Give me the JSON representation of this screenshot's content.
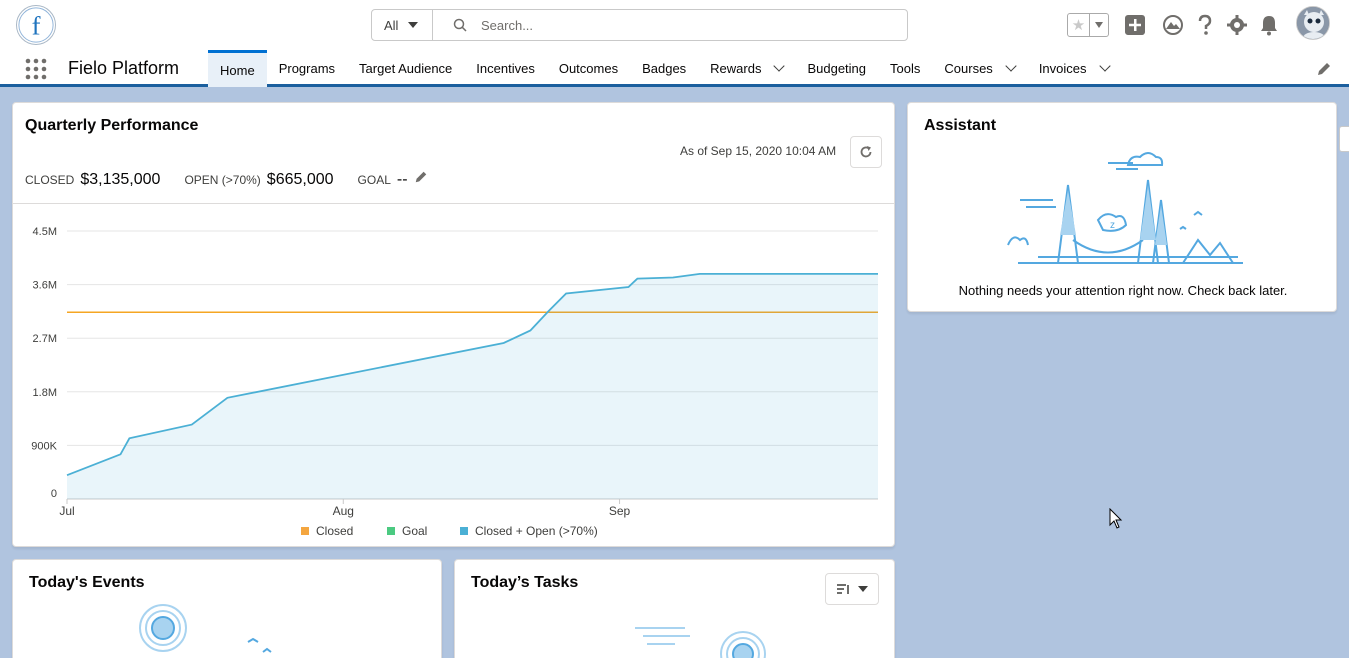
{
  "header": {
    "search_scope": "All",
    "search_placeholder": "Search..."
  },
  "nav": {
    "app_name": "Fielo Platform",
    "tabs": [
      {
        "label": "Home",
        "active": true,
        "dropdown": false
      },
      {
        "label": "Programs",
        "dropdown": false
      },
      {
        "label": "Target Audience",
        "dropdown": false
      },
      {
        "label": "Incentives",
        "dropdown": false
      },
      {
        "label": "Outcomes",
        "dropdown": false
      },
      {
        "label": "Badges",
        "dropdown": false
      },
      {
        "label": "Rewards",
        "dropdown": true
      },
      {
        "label": "Budgeting",
        "dropdown": false
      },
      {
        "label": "Tools",
        "dropdown": false
      },
      {
        "label": "Courses",
        "dropdown": true
      },
      {
        "label": "Invoices",
        "dropdown": true
      }
    ]
  },
  "quarterly": {
    "title": "Quarterly Performance",
    "as_of": "As of Sep 15, 2020 10:04 AM",
    "closed_label": "CLOSED",
    "closed_value": "$3,135,000",
    "open_label": "OPEN (>70%)",
    "open_value": "$665,000",
    "goal_label": "GOAL",
    "goal_value": "--"
  },
  "chart_data": {
    "type": "area",
    "y_ticks": [
      "0",
      "900K",
      "1.8M",
      "2.7M",
      "3.6M",
      "4.5M"
    ],
    "ylim": [
      0,
      4500000
    ],
    "x_ticks": [
      "Jul",
      "Aug",
      "Sep"
    ],
    "x_domain_days": [
      0,
      91
    ],
    "legend": [
      {
        "name": "Closed",
        "color": "#f4a640"
      },
      {
        "name": "Goal",
        "color": "#4bca81"
      },
      {
        "name": "Closed + Open (>70%)",
        "color": "#4bb0d5"
      }
    ],
    "goal_line": {
      "value": 3135000,
      "color": "#f5a623"
    },
    "series": [
      {
        "name": "Closed + Open (>70%)",
        "color": "#4bb0d5",
        "x": [
          0,
          6,
          7,
          14,
          18,
          49,
          52,
          54,
          56,
          63,
          64,
          68,
          71,
          91
        ],
        "y": [
          400000,
          750000,
          1020000,
          1250000,
          1700000,
          2620000,
          2830000,
          3150000,
          3450000,
          3560000,
          3700000,
          3720000,
          3780000,
          3780000
        ]
      }
    ]
  },
  "assistant": {
    "title": "Assistant",
    "message": "Nothing needs your attention right now. Check back later."
  },
  "events": {
    "title": "Today's Events"
  },
  "tasks": {
    "title": "Today’s Tasks"
  }
}
